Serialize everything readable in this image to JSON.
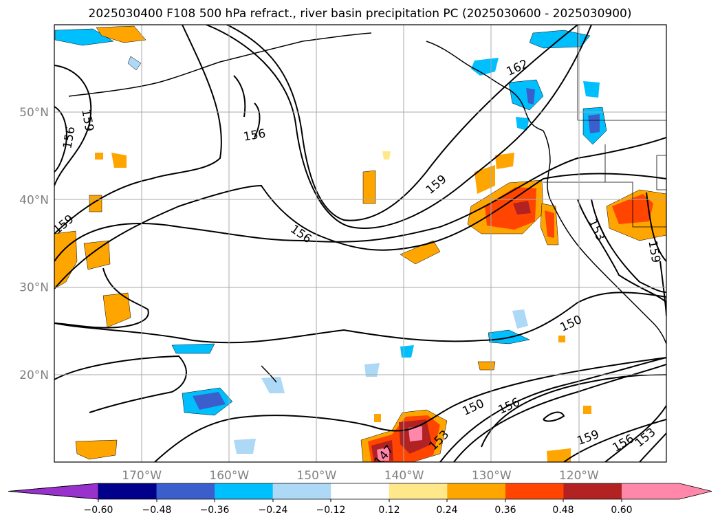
{
  "title": "2025030400 F108 500 hPa refract., river basin precipitation PC (2025030600 - 2025030900)",
  "map": {
    "lon_range": [
      -180,
      -110
    ],
    "lat_range": [
      10,
      60
    ],
    "lat_labels": [
      "50°N",
      "40°N",
      "30°N",
      "20°N"
    ],
    "lat_values": [
      50,
      40,
      30,
      20
    ],
    "lon_labels": [
      "170°W",
      "160°W",
      "150°W",
      "140°W",
      "130°W",
      "120°W"
    ],
    "lon_values": [
      -170,
      -160,
      -150,
      -140,
      -130,
      -120
    ],
    "contour_labels": [
      {
        "text": "162"
      },
      {
        "text": "159"
      },
      {
        "text": "156"
      },
      {
        "text": "156"
      },
      {
        "text": "159"
      },
      {
        "text": "159"
      },
      {
        "text": "156"
      },
      {
        "text": "153"
      },
      {
        "text": "159"
      },
      {
        "text": "150"
      },
      {
        "text": "150"
      },
      {
        "text": "156"
      },
      {
        "text": "153"
      },
      {
        "text": "147"
      },
      {
        "text": "159"
      },
      {
        "text": "156"
      },
      {
        "text": "153"
      }
    ]
  },
  "colorbar": {
    "ticks": [
      "−0.60",
      "−0.48",
      "−0.36",
      "−0.24",
      "−0.12",
      "0.12",
      "0.24",
      "0.36",
      "0.48",
      "0.60"
    ],
    "colors": [
      "#9932cc",
      "#00008b",
      "#3a5fcd",
      "#00bfff",
      "#add8f6",
      "#ffffff",
      "#ffe88a",
      "#ffa500",
      "#ff4500",
      "#b22222",
      "#ff88aa"
    ]
  }
}
